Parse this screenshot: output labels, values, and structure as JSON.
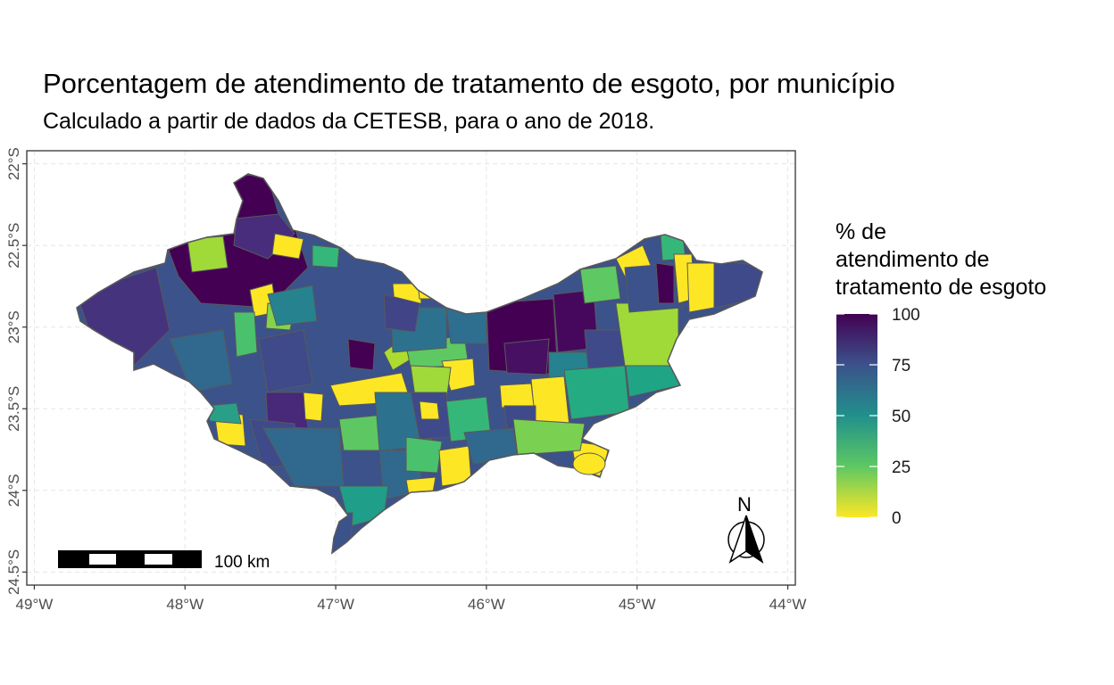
{
  "title": "Porcentagem de atendimento de tratamento de esgoto, por município",
  "subtitle": "Calculado a partir de dados da CETESB, para o ano de 2018.",
  "axes": {
    "x_ticks": [
      "49°W",
      "48°W",
      "47°W",
      "46°W",
      "45°W",
      "44°W"
    ],
    "y_ticks": [
      "22°S",
      "22.5°S",
      "23°S",
      "23.5°S",
      "24°S",
      "24.5°S"
    ],
    "x_range": [
      -49.05,
      -43.95
    ],
    "y_range": [
      -24.58,
      -21.92
    ],
    "grid": true
  },
  "legend": {
    "title": "% de\natendimento de\ntratamento de esgoto",
    "labels": [
      "100",
      "75",
      "50",
      "25",
      "0"
    ],
    "colors": [
      "#440154",
      "#3b528b",
      "#21908c",
      "#5dc863",
      "#fde725"
    ],
    "placement": "right"
  },
  "scale_bar": {
    "label": "100 km"
  },
  "north_arrow": {
    "label": "N"
  },
  "colors": {
    "region_border": "#595959",
    "panel_border": "#333333",
    "grid": "#e5e5e5"
  }
}
